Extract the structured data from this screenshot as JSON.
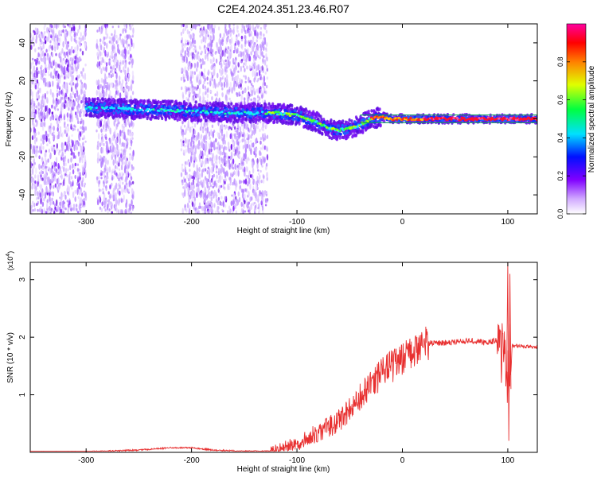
{
  "title": "C2E4.2024.351.23.46.R07",
  "chart_data": [
    {
      "type": "heatmap",
      "xlabel": "Height of straight line (km)",
      "ylabel": "Frequency (Hz)",
      "xlim": [
        -353,
        128
      ],
      "ylim": [
        -50,
        50
      ],
      "x_ticks": [
        -300,
        -200,
        -100,
        0,
        100
      ],
      "y_ticks": [
        -40,
        -20,
        0,
        20,
        40
      ],
      "colorbar": {
        "label": "Normalized spectral amplitude",
        "range": [
          0,
          1
        ],
        "ticks": [
          "0.0",
          "0.2",
          "0.4",
          "0.6",
          "0.8"
        ],
        "colors": [
          "#ffffff",
          "#c080ff",
          "#8000ff",
          "#0000ff",
          "#00ffff",
          "#00ff00",
          "#ffff00",
          "#ff8000",
          "#ff0000",
          "#ff00ff"
        ]
      },
      "ridge": {
        "x": [
          -300,
          -250,
          -200,
          -150,
          -120,
          -100,
          -90,
          -80,
          -70,
          -60,
          -50,
          -40,
          -30,
          -20,
          -10,
          0,
          20,
          50,
          100,
          128
        ],
        "y": [
          6,
          5,
          4,
          3,
          3,
          2,
          0,
          -2,
          -5,
          -6,
          -5,
          -3,
          0,
          1,
          0,
          0,
          0,
          0,
          0,
          0
        ]
      },
      "noise_bands_x": [
        [
          -353,
          -300
        ],
        [
          -290,
          -255
        ],
        [
          -210,
          -128
        ]
      ],
      "reference_lines_hz": [
        2,
        -2
      ]
    },
    {
      "type": "line",
      "xlabel": "Height of straight line (km)",
      "ylabel": "SNR (10 * v/v)",
      "y_multiplier": "(x10^4)",
      "xlim": [
        -353,
        128
      ],
      "ylim": [
        0,
        3.3
      ],
      "x_ticks": [
        -300,
        -200,
        -100,
        0,
        100
      ],
      "y_ticks": [
        1,
        2,
        3
      ],
      "color": "#e83030",
      "series": [
        {
          "x": [
            -353,
            -300,
            -250,
            -220,
            -200,
            -180,
            -150,
            -125,
            -110,
            -100,
            -80,
            -60,
            -50,
            -40,
            -30,
            -20,
            -10,
            0,
            10,
            20,
            30,
            40,
            50,
            60,
            70,
            80,
            90,
            95,
            100,
            103,
            110,
            128
          ],
          "y": [
            0.01,
            0.01,
            0.04,
            0.08,
            0.08,
            0.04,
            0.02,
            0.02,
            0.1,
            0.15,
            0.35,
            0.55,
            0.75,
            0.95,
            1.15,
            1.35,
            1.5,
            1.6,
            1.75,
            1.9,
            1.9,
            1.9,
            1.92,
            1.93,
            1.93,
            1.9,
            1.95,
            1.7,
            1.3,
            1.85,
            1.85,
            1.82
          ]
        }
      ]
    }
  ]
}
